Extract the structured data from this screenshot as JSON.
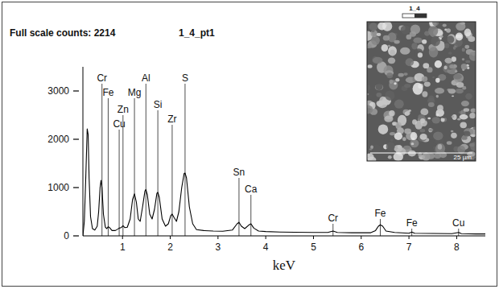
{
  "chart_data": {
    "type": "line",
    "title": "Full scale counts: 2214",
    "subtitle": "1_4_pt1",
    "x_label": "keV",
    "color": "#000000",
    "x": [
      0.17,
      0.2,
      0.23,
      0.26,
      0.28,
      0.3,
      0.33,
      0.37,
      0.42,
      0.47,
      0.5,
      0.53,
      0.55,
      0.57,
      0.6,
      0.64,
      0.67,
      0.7,
      0.73,
      0.78,
      0.85,
      0.9,
      0.93,
      0.97,
      1.01,
      1.05,
      1.1,
      1.16,
      1.21,
      1.25,
      1.29,
      1.33,
      1.37,
      1.42,
      1.47,
      1.49,
      1.52,
      1.57,
      1.62,
      1.67,
      1.72,
      1.74,
      1.77,
      1.83,
      1.9,
      1.96,
      2.01,
      2.04,
      2.08,
      2.13,
      2.18,
      2.24,
      2.29,
      2.31,
      2.34,
      2.4,
      2.47,
      2.55,
      2.7,
      2.9,
      3.1,
      3.3,
      3.4,
      3.44,
      3.49,
      3.56,
      3.64,
      3.69,
      3.75,
      3.85,
      4.0,
      4.3,
      4.6,
      5.0,
      5.3,
      5.41,
      5.5,
      5.8,
      6.2,
      6.3,
      6.36,
      6.4,
      6.45,
      6.52,
      6.7,
      7.0,
      7.06,
      7.12,
      7.5,
      7.9,
      8.04,
      8.1,
      8.4,
      8.6
    ],
    "values": [
      0,
      300,
      1200,
      2214,
      2100,
      1200,
      400,
      150,
      120,
      200,
      500,
      1000,
      1150,
      1000,
      450,
      180,
      150,
      190,
      170,
      110,
      110,
      140,
      160,
      170,
      210,
      170,
      180,
      350,
      750,
      870,
      700,
      350,
      300,
      600,
      930,
      960,
      850,
      450,
      350,
      550,
      880,
      900,
      800,
      350,
      200,
      250,
      420,
      450,
      380,
      300,
      500,
      1000,
      1290,
      1300,
      1200,
      600,
      250,
      130,
      110,
      100,
      95,
      120,
      250,
      280,
      200,
      150,
      220,
      250,
      160,
      100,
      90,
      80,
      75,
      70,
      70,
      100,
      70,
      65,
      65,
      110,
      200,
      230,
      200,
      100,
      70,
      55,
      80,
      55,
      50,
      45,
      70,
      45,
      40,
      40
    ],
    "xlim": [
      0.17,
      8.6
    ],
    "xticks": [
      1,
      2,
      3,
      4,
      5,
      6,
      7,
      8
    ],
    "ylim": [
      0,
      3500
    ],
    "yticks": [
      0,
      1000,
      2000,
      3000
    ],
    "annotations": [
      {
        "text": "Cr",
        "x": 0.57,
        "y": 3200
      },
      {
        "text": "Fe",
        "x": 0.7,
        "y": 2900
      },
      {
        "text": "Zn",
        "x": 1.01,
        "y": 2550
      },
      {
        "text": "Cu",
        "x": 0.93,
        "y": 2250
      },
      {
        "text": "Mg",
        "x": 1.25,
        "y": 2900
      },
      {
        "text": "Al",
        "x": 1.49,
        "y": 3200
      },
      {
        "text": "Si",
        "x": 1.74,
        "y": 2650
      },
      {
        "text": "Zr",
        "x": 2.04,
        "y": 2350
      },
      {
        "text": "S",
        "x": 2.31,
        "y": 3200
      },
      {
        "text": "Sn",
        "x": 3.44,
        "y": 1250
      },
      {
        "text": "Ca",
        "x": 3.69,
        "y": 900
      },
      {
        "text": "Cr",
        "x": 5.41,
        "y": 300
      },
      {
        "text": "Fe",
        "x": 6.4,
        "y": 400
      },
      {
        "text": "Fe",
        "x": 7.06,
        "y": 200
      },
      {
        "text": "Cu",
        "x": 8.04,
        "y": 200
      }
    ],
    "inset": {
      "label": "1_4",
      "scale_bar": "25 µm"
    }
  }
}
